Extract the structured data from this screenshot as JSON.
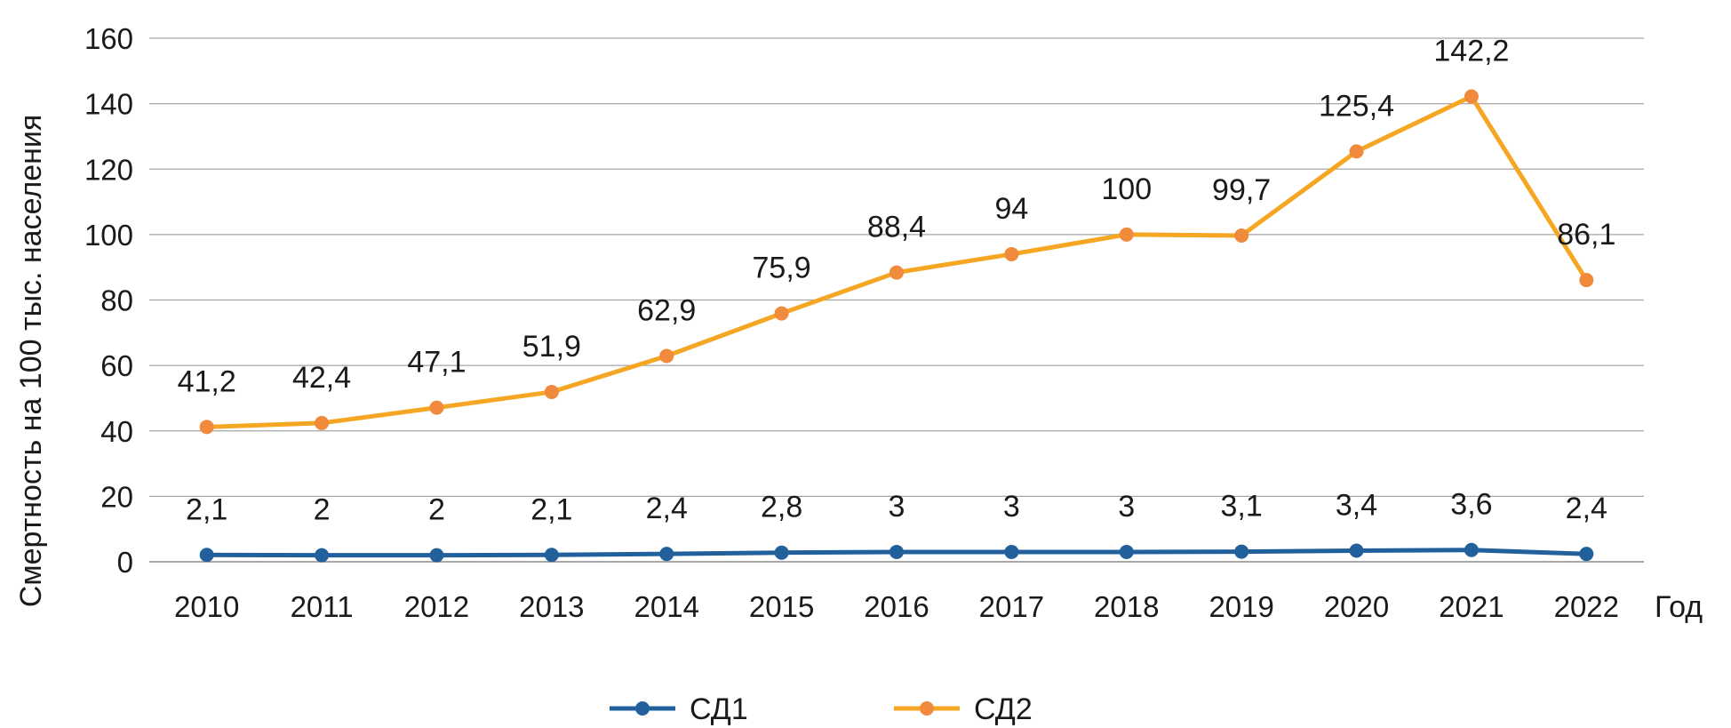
{
  "chart_data": {
    "type": "line",
    "categories": [
      "2010",
      "2011",
      "2012",
      "2013",
      "2014",
      "2015",
      "2016",
      "2017",
      "2018",
      "2019",
      "2020",
      "2021",
      "2022"
    ],
    "series": [
      {
        "name": "СД1",
        "color": "#22609c",
        "values": [
          2.1,
          2,
          2,
          2.1,
          2.4,
          2.8,
          3,
          3,
          3,
          3.1,
          3.4,
          3.6,
          2.4
        ],
        "labels": [
          "2,1",
          "2",
          "2",
          "2,1",
          "2,4",
          "2,8",
          "3",
          "3",
          "3",
          "3,1",
          "3,4",
          "3,6",
          "2,4"
        ]
      },
      {
        "name": "СД2",
        "color": "#f5a623",
        "marker_color": "#f08a3c",
        "values": [
          41.2,
          42.4,
          47.1,
          51.9,
          62.9,
          75.9,
          88.4,
          94,
          100,
          99.7,
          125.4,
          142.2,
          86.1
        ],
        "labels": [
          "41,2",
          "42,4",
          "47,1",
          "51,9",
          "62,9",
          "75,9",
          "88,4",
          "94",
          "100",
          "99,7",
          "125,4",
          "142,2",
          "86,1"
        ]
      }
    ],
    "xlabel": "Год",
    "ylabel": "Смертность на 100 тыс. населения",
    "ylim": [
      0,
      160
    ],
    "yticks": [
      "0",
      "20",
      "40",
      "60",
      "80",
      "100",
      "120",
      "140",
      "160"
    ],
    "grid": true,
    "legend_position": "bottom"
  }
}
